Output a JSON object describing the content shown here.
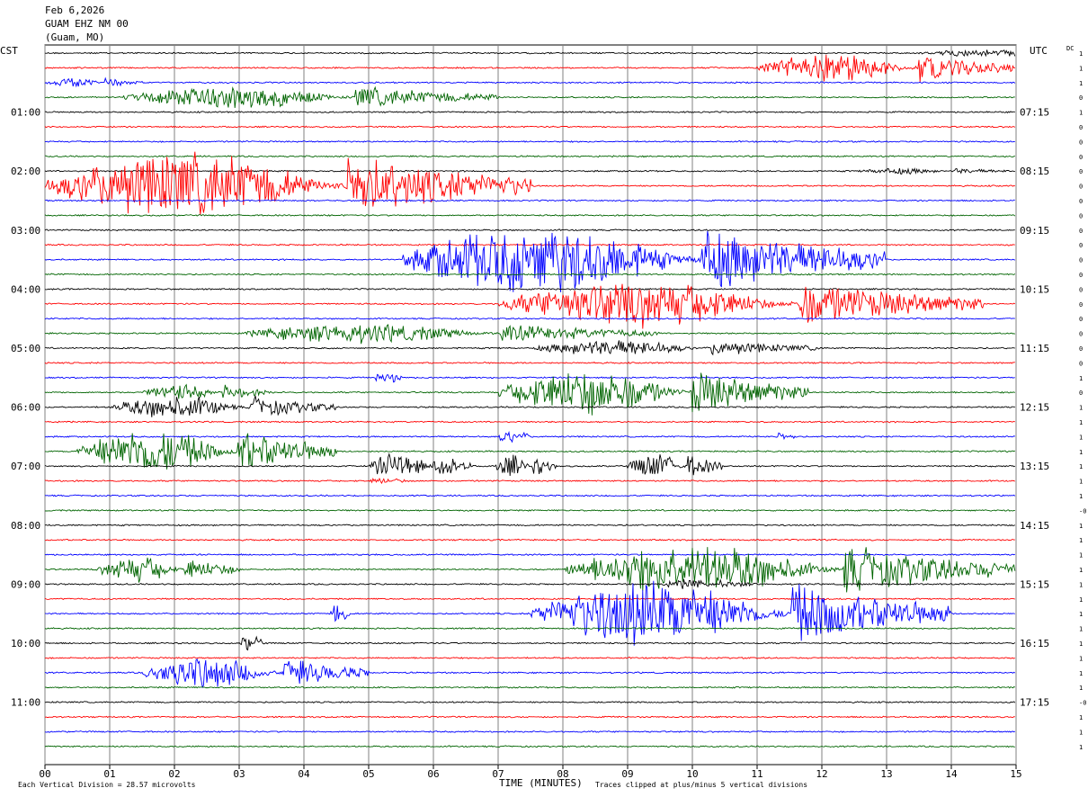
{
  "header": {
    "date": "Feb 6,2026",
    "station": "GUAM EHZ NM 00",
    "location": "(Guam, MO)"
  },
  "left_zone_label": "CST",
  "right_zone_label": "UTC",
  "dc_label": "DC",
  "colors": {
    "trace_cycle": [
      "#000000",
      "#ff0000",
      "#0000ff",
      "#006400"
    ],
    "grid": "#808080",
    "background": "#ffffff"
  },
  "chart_data": {
    "type": "line",
    "description_kind": "helicorder",
    "xlabel": "TIME (MINUTES)",
    "xlim": [
      0,
      15
    ],
    "x_ticks": [
      "00",
      "01",
      "02",
      "03",
      "04",
      "05",
      "06",
      "07",
      "08",
      "09",
      "10",
      "11",
      "12",
      "13",
      "14",
      "15"
    ],
    "trace_count": 48,
    "minutes_per_trace": 15,
    "left_hour_labels": [
      "01:00",
      "02:00",
      "03:00",
      "04:00",
      "05:00",
      "06:00",
      "07:00",
      "08:00",
      "09:00",
      "10:00",
      "11:00"
    ],
    "right_hour_labels": [
      "07:15",
      "08:15",
      "09:15",
      "10:15",
      "11:15",
      "12:15",
      "13:15",
      "14:15",
      "15:15",
      "16:15",
      "17:15"
    ],
    "hour_label_first_trace": 4,
    "dc_offsets": [
      "1",
      "1",
      "1",
      "0",
      "1",
      "0",
      "0",
      "0",
      "0",
      "0",
      "0",
      "0",
      "0",
      "0",
      "0",
      "0",
      "0",
      "0",
      "0",
      "0",
      "0",
      "0",
      "1",
      "0",
      "1",
      "1",
      "1",
      "1",
      "1",
      "1",
      "1",
      "-0",
      "1",
      "1",
      "1",
      "1",
      "1",
      "1",
      "1",
      "1",
      "1",
      "1",
      "1",
      "1",
      "-0",
      "1",
      "1",
      "1"
    ],
    "events": [
      {
        "trace": 0,
        "start_min": 13.5,
        "end_min": 15,
        "amplitude": 4,
        "note": "ongoing"
      },
      {
        "trace": 1,
        "start_min": 11,
        "end_min": 15,
        "amplitude": 18
      },
      {
        "trace": 2,
        "start_min": 0,
        "end_min": 1.5,
        "amplitude": 6
      },
      {
        "trace": 3,
        "start_min": 1.2,
        "end_min": 7,
        "amplitude": 14
      },
      {
        "trace": 8,
        "start_min": 12.5,
        "end_min": 15,
        "amplitude": 4
      },
      {
        "trace": 9,
        "start_min": 0,
        "end_min": 7.5,
        "amplitude": 40
      },
      {
        "trace": 14,
        "start_min": 5.5,
        "end_min": 13,
        "amplitude": 42
      },
      {
        "trace": 17,
        "start_min": 7,
        "end_min": 14.5,
        "amplitude": 28
      },
      {
        "trace": 19,
        "start_min": 3,
        "end_min": 9.5,
        "amplitude": 12
      },
      {
        "trace": 20,
        "start_min": 7.5,
        "end_min": 12,
        "amplitude": 10
      },
      {
        "trace": 22,
        "start_min": 5.1,
        "end_min": 5.5,
        "amplitude": 12
      },
      {
        "trace": 23,
        "start_min": 1.5,
        "end_min": 3.5,
        "amplitude": 10
      },
      {
        "trace": 23,
        "start_min": 7,
        "end_min": 11.8,
        "amplitude": 28
      },
      {
        "trace": 24,
        "start_min": 1.0,
        "end_min": 4.5,
        "amplitude": 14
      },
      {
        "trace": 26,
        "start_min": 7.0,
        "end_min": 7.5,
        "amplitude": 10
      },
      {
        "trace": 26,
        "start_min": 11.3,
        "end_min": 11.6,
        "amplitude": 8
      },
      {
        "trace": 27,
        "start_min": 0.5,
        "end_min": 4.5,
        "amplitude": 28
      },
      {
        "trace": 28,
        "start_min": 5,
        "end_min": 6.6,
        "amplitude": 18
      },
      {
        "trace": 28,
        "start_min": 6.9,
        "end_min": 7.9,
        "amplitude": 14
      },
      {
        "trace": 28,
        "start_min": 9,
        "end_min": 10.5,
        "amplitude": 16
      },
      {
        "trace": 29,
        "start_min": 5.0,
        "end_min": 5.6,
        "amplitude": 5
      },
      {
        "trace": 35,
        "start_min": 0.8,
        "end_min": 3.0,
        "amplitude": 16
      },
      {
        "trace": 35,
        "start_min": 8.0,
        "end_min": 15,
        "amplitude": 30
      },
      {
        "trace": 36,
        "start_min": 9.5,
        "end_min": 11,
        "amplitude": 6
      },
      {
        "trace": 38,
        "start_min": 4.4,
        "end_min": 4.7,
        "amplitude": 14
      },
      {
        "trace": 38,
        "start_min": 7.5,
        "end_min": 14,
        "amplitude": 40
      },
      {
        "trace": 40,
        "start_min": 3.0,
        "end_min": 3.4,
        "amplitude": 10
      },
      {
        "trace": 42,
        "start_min": 1.5,
        "end_min": 5.0,
        "amplitude": 20
      }
    ]
  },
  "footer": {
    "vertical_division": "Each Vertical Division =   28.57 microvolts",
    "clip_note": "Traces clipped at plus/minus 5 vertical divisions"
  }
}
